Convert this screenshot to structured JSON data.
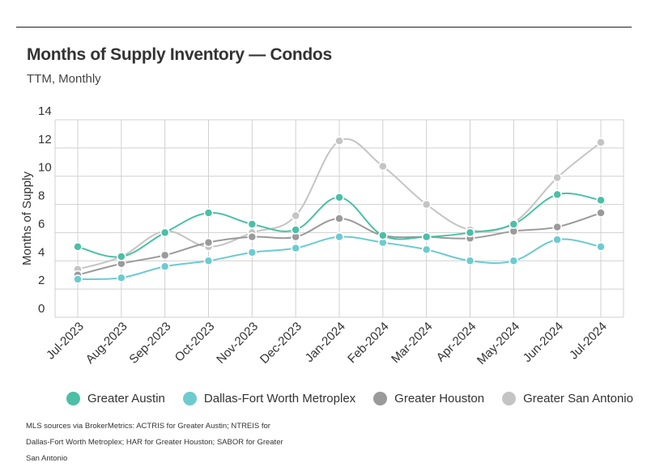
{
  "header": {
    "title": "Months of Supply Inventory — Condos",
    "subtitle": "TTM, Monthly"
  },
  "footer": {
    "source": "MLS sources via BrokerMetrics: ACTRIS for Greater Austin; NTREIS for Dallas-Fort Worth Metroplex; HAR for Greater Houston; SABOR for Greater San Antonio"
  },
  "chart_data": {
    "type": "line",
    "title": "Months of Supply Inventory — Condos",
    "subtitle": "TTM, Monthly",
    "xlabel": "",
    "ylabel": "Months of Supply",
    "ylim": [
      0,
      14
    ],
    "yticks": [
      0,
      2,
      4,
      6,
      8,
      10,
      12,
      14
    ],
    "grid": true,
    "legend_position": "bottom",
    "categories": [
      "Jul-2023",
      "Aug-2023",
      "Sep-2023",
      "Oct-2023",
      "Nov-2023",
      "Dec-2023",
      "Jan-2024",
      "Feb-2024",
      "Mar-2024",
      "Apr-2024",
      "May-2024",
      "Jun-2024",
      "Jul-2024"
    ],
    "series": [
      {
        "name": "Greater Austin",
        "color": "#4cbfa6",
        "values": [
          5.0,
          4.3,
          6.0,
          7.4,
          6.6,
          6.2,
          8.5,
          5.8,
          5.7,
          6.0,
          6.6,
          8.7,
          8.3
        ]
      },
      {
        "name": "Dallas-Fort Worth Metroplex",
        "color": "#6dcbd0",
        "values": [
          2.7,
          2.8,
          3.6,
          4.0,
          4.6,
          4.9,
          5.7,
          5.3,
          4.8,
          4.0,
          4.0,
          5.5,
          5.0
        ]
      },
      {
        "name": "Greater Houston",
        "color": "#9a9a9a",
        "values": [
          3.0,
          3.8,
          4.4,
          5.3,
          5.7,
          5.7,
          7.0,
          5.8,
          5.7,
          5.6,
          6.1,
          6.4,
          7.4
        ]
      },
      {
        "name": "Greater San Antonio",
        "color": "#c4c4c4",
        "values": [
          3.4,
          4.3,
          6.1,
          5.0,
          6.0,
          7.2,
          12.5,
          10.7,
          8.0,
          6.2,
          6.7,
          9.9,
          12.4
        ]
      }
    ]
  }
}
